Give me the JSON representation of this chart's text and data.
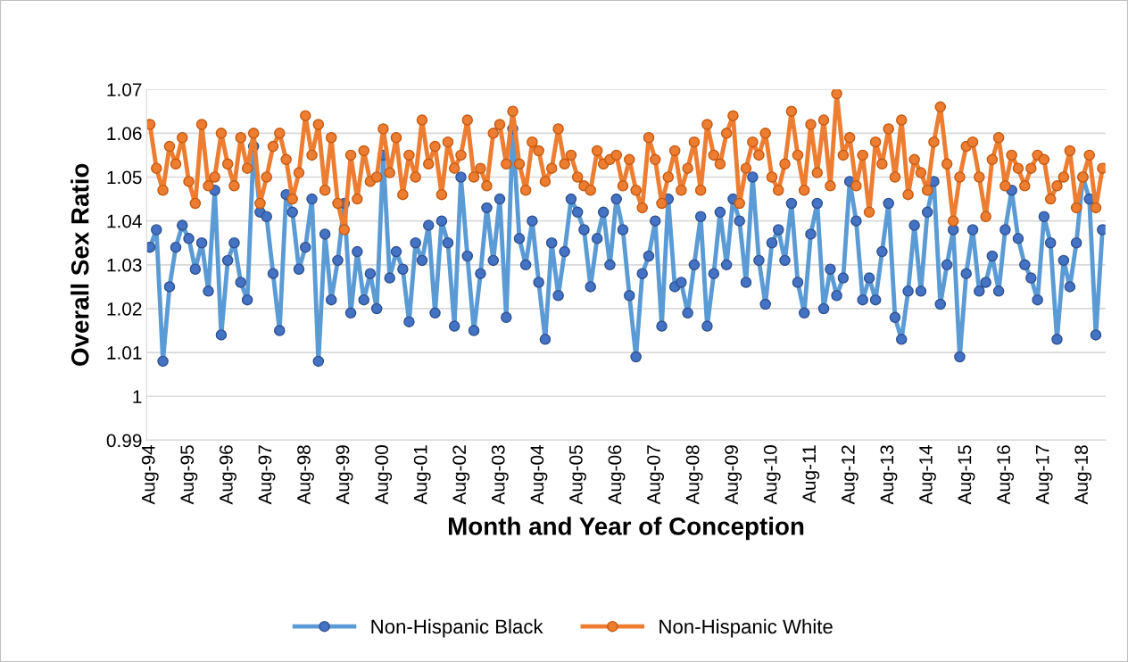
{
  "chart_data": {
    "type": "line",
    "xlabel": "Month and Year of Conception",
    "ylabel": "Overall Sex Ratio",
    "x": [
      "1994-08",
      "1994-10",
      "1994-12",
      "1995-02",
      "1995-04",
      "1995-06",
      "1995-08",
      "1995-10",
      "1995-12",
      "1996-02",
      "1996-04",
      "1996-06",
      "1996-08",
      "1996-10",
      "1996-12",
      "1997-02",
      "1997-04",
      "1997-06",
      "1997-08",
      "1997-10",
      "1997-12",
      "1998-02",
      "1998-04",
      "1998-06",
      "1998-08",
      "1998-10",
      "1998-12",
      "1999-02",
      "1999-04",
      "1999-06",
      "1999-08",
      "1999-10",
      "1999-12",
      "2000-02",
      "2000-04",
      "2000-06",
      "2000-08",
      "2000-10",
      "2000-12",
      "2001-02",
      "2001-04",
      "2001-06",
      "2001-08",
      "2001-10",
      "2001-12",
      "2002-02",
      "2002-04",
      "2002-06",
      "2002-08",
      "2002-10",
      "2002-12",
      "2003-02",
      "2003-04",
      "2003-06",
      "2003-08",
      "2003-10",
      "2003-12",
      "2004-02",
      "2004-04",
      "2004-06",
      "2004-08",
      "2004-10",
      "2004-12",
      "2005-02",
      "2005-04",
      "2005-06",
      "2005-08",
      "2005-10",
      "2005-12",
      "2006-02",
      "2006-04",
      "2006-06",
      "2006-08",
      "2006-10",
      "2006-12",
      "2007-02",
      "2007-04",
      "2007-06",
      "2007-08",
      "2007-10",
      "2007-12",
      "2008-02",
      "2008-04",
      "2008-06",
      "2008-08",
      "2008-10",
      "2008-12",
      "2009-02",
      "2009-04",
      "2009-06",
      "2009-08",
      "2009-10",
      "2009-12",
      "2010-02",
      "2010-04",
      "2010-06",
      "2010-08",
      "2010-10",
      "2010-12",
      "2011-02",
      "2011-04",
      "2011-06",
      "2011-08",
      "2011-10",
      "2011-12",
      "2012-02",
      "2012-04",
      "2012-06",
      "2012-08",
      "2012-10",
      "2012-12",
      "2013-02",
      "2013-04",
      "2013-06",
      "2013-08",
      "2013-10",
      "2013-12",
      "2014-02",
      "2014-04",
      "2014-06",
      "2014-08",
      "2014-10",
      "2014-12",
      "2015-02",
      "2015-04",
      "2015-06",
      "2015-08",
      "2015-10",
      "2015-12",
      "2016-02",
      "2016-04",
      "2016-06",
      "2016-08",
      "2016-10",
      "2016-12",
      "2017-02",
      "2017-04",
      "2017-06",
      "2017-08",
      "2017-10",
      "2017-12",
      "2018-02",
      "2018-04",
      "2018-06",
      "2018-08",
      "2018-10",
      "2018-12",
      "2019-02"
    ],
    "series": [
      {
        "name": "Non-Hispanic Black",
        "color": "#5b9bd5",
        "values": [
          1.034,
          1.038,
          1.008,
          1.025,
          1.034,
          1.039,
          1.036,
          1.029,
          1.035,
          1.024,
          1.047,
          1.014,
          1.031,
          1.035,
          1.026,
          1.022,
          1.057,
          1.042,
          1.041,
          1.028,
          1.015,
          1.046,
          1.042,
          1.029,
          1.034,
          1.045,
          1.008,
          1.037,
          1.022,
          1.031,
          1.044,
          1.019,
          1.033,
          1.022,
          1.028,
          1.02,
          1.055,
          1.027,
          1.033,
          1.029,
          1.017,
          1.035,
          1.031,
          1.039,
          1.019,
          1.04,
          1.035,
          1.016,
          1.05,
          1.032,
          1.015,
          1.028,
          1.043,
          1.031,
          1.045,
          1.018,
          1.061,
          1.036,
          1.03,
          1.04,
          1.026,
          1.013,
          1.035,
          1.023,
          1.033,
          1.045,
          1.042,
          1.038,
          1.025,
          1.036,
          1.042,
          1.03,
          1.045,
          1.038,
          1.023,
          1.009,
          1.028,
          1.032,
          1.04,
          1.016,
          1.045,
          1.025,
          1.026,
          1.019,
          1.03,
          1.041,
          1.016,
          1.028,
          1.042,
          1.03,
          1.045,
          1.04,
          1.026,
          1.05,
          1.031,
          1.021,
          1.035,
          1.038,
          1.031,
          1.044,
          1.026,
          1.019,
          1.037,
          1.044,
          1.02,
          1.029,
          1.023,
          1.027,
          1.049,
          1.04,
          1.022,
          1.027,
          1.022,
          1.033,
          1.044,
          1.018,
          1.013,
          1.024,
          1.039,
          1.024,
          1.042,
          1.049,
          1.021,
          1.03,
          1.038,
          1.009,
          1.028,
          1.038,
          1.024,
          1.026,
          1.032,
          1.024,
          1.038,
          1.047,
          1.036,
          1.03,
          1.027,
          1.022,
          1.041,
          1.035,
          1.013,
          1.031,
          1.025,
          1.035,
          1.05,
          1.045,
          1.014,
          1.038
        ]
      },
      {
        "name": "Non-Hispanic White",
        "color": "#ed7d31",
        "values": [
          1.062,
          1.052,
          1.047,
          1.057,
          1.053,
          1.059,
          1.049,
          1.044,
          1.062,
          1.048,
          1.05,
          1.06,
          1.053,
          1.048,
          1.059,
          1.052,
          1.06,
          1.044,
          1.05,
          1.057,
          1.06,
          1.054,
          1.045,
          1.051,
          1.064,
          1.055,
          1.062,
          1.047,
          1.059,
          1.044,
          1.038,
          1.055,
          1.045,
          1.056,
          1.049,
          1.05,
          1.061,
          1.051,
          1.059,
          1.046,
          1.055,
          1.05,
          1.063,
          1.053,
          1.057,
          1.046,
          1.058,
          1.052,
          1.055,
          1.063,
          1.05,
          1.052,
          1.048,
          1.06,
          1.062,
          1.053,
          1.065,
          1.053,
          1.047,
          1.058,
          1.056,
          1.049,
          1.052,
          1.061,
          1.053,
          1.055,
          1.05,
          1.048,
          1.047,
          1.056,
          1.053,
          1.054,
          1.055,
          1.048,
          1.054,
          1.047,
          1.043,
          1.059,
          1.054,
          1.044,
          1.05,
          1.056,
          1.047,
          1.052,
          1.058,
          1.047,
          1.062,
          1.055,
          1.053,
          1.06,
          1.064,
          1.044,
          1.052,
          1.058,
          1.055,
          1.06,
          1.05,
          1.047,
          1.053,
          1.065,
          1.055,
          1.047,
          1.062,
          1.051,
          1.063,
          1.048,
          1.069,
          1.055,
          1.059,
          1.048,
          1.055,
          1.042,
          1.058,
          1.053,
          1.061,
          1.05,
          1.063,
          1.046,
          1.054,
          1.051,
          1.047,
          1.058,
          1.066,
          1.053,
          1.04,
          1.05,
          1.057,
          1.058,
          1.05,
          1.041,
          1.054,
          1.059,
          1.048,
          1.055,
          1.052,
          1.048,
          1.052,
          1.055,
          1.054,
          1.045,
          1.048,
          1.05,
          1.056,
          1.043,
          1.05,
          1.055,
          1.043,
          1.052
        ]
      }
    ],
    "xlim": [
      "1994-07",
      "2019-03"
    ],
    "xticks": [
      {
        "value": "1994-08",
        "label": "Aug-94"
      },
      {
        "value": "1995-08",
        "label": "Aug-95"
      },
      {
        "value": "1996-08",
        "label": "Aug-96"
      },
      {
        "value": "1997-08",
        "label": "Aug-97"
      },
      {
        "value": "1998-08",
        "label": "Aug-98"
      },
      {
        "value": "1999-08",
        "label": "Aug-99"
      },
      {
        "value": "2000-08",
        "label": "Aug-00"
      },
      {
        "value": "2001-08",
        "label": "Aug-01"
      },
      {
        "value": "2002-08",
        "label": "Aug-02"
      },
      {
        "value": "2003-08",
        "label": "Aug-03"
      },
      {
        "value": "2004-08",
        "label": "Aug-04"
      },
      {
        "value": "2005-08",
        "label": "Aug-05"
      },
      {
        "value": "2006-08",
        "label": "Aug-06"
      },
      {
        "value": "2007-08",
        "label": "Aug-07"
      },
      {
        "value": "2008-08",
        "label": "Aug-08"
      },
      {
        "value": "2009-08",
        "label": "Aug-09"
      },
      {
        "value": "2010-08",
        "label": "Aug-10"
      },
      {
        "value": "2011-08",
        "label": "Aug-11"
      },
      {
        "value": "2012-08",
        "label": "Aug-12"
      },
      {
        "value": "2013-08",
        "label": "Aug-13"
      },
      {
        "value": "2014-08",
        "label": "Aug-14"
      },
      {
        "value": "2015-08",
        "label": "Aug-15"
      },
      {
        "value": "2016-08",
        "label": "Aug-16"
      },
      {
        "value": "2017-08",
        "label": "Aug-17"
      },
      {
        "value": "2018-08",
        "label": "Aug-18"
      }
    ],
    "ylim": [
      0.99,
      1.07
    ],
    "yticks": [
      0.99,
      1,
      1.01,
      1.02,
      1.03,
      1.04,
      1.05,
      1.06,
      1.07
    ],
    "grid": "y",
    "legend": "bottom",
    "marker": "circle",
    "line_style": "solid"
  }
}
